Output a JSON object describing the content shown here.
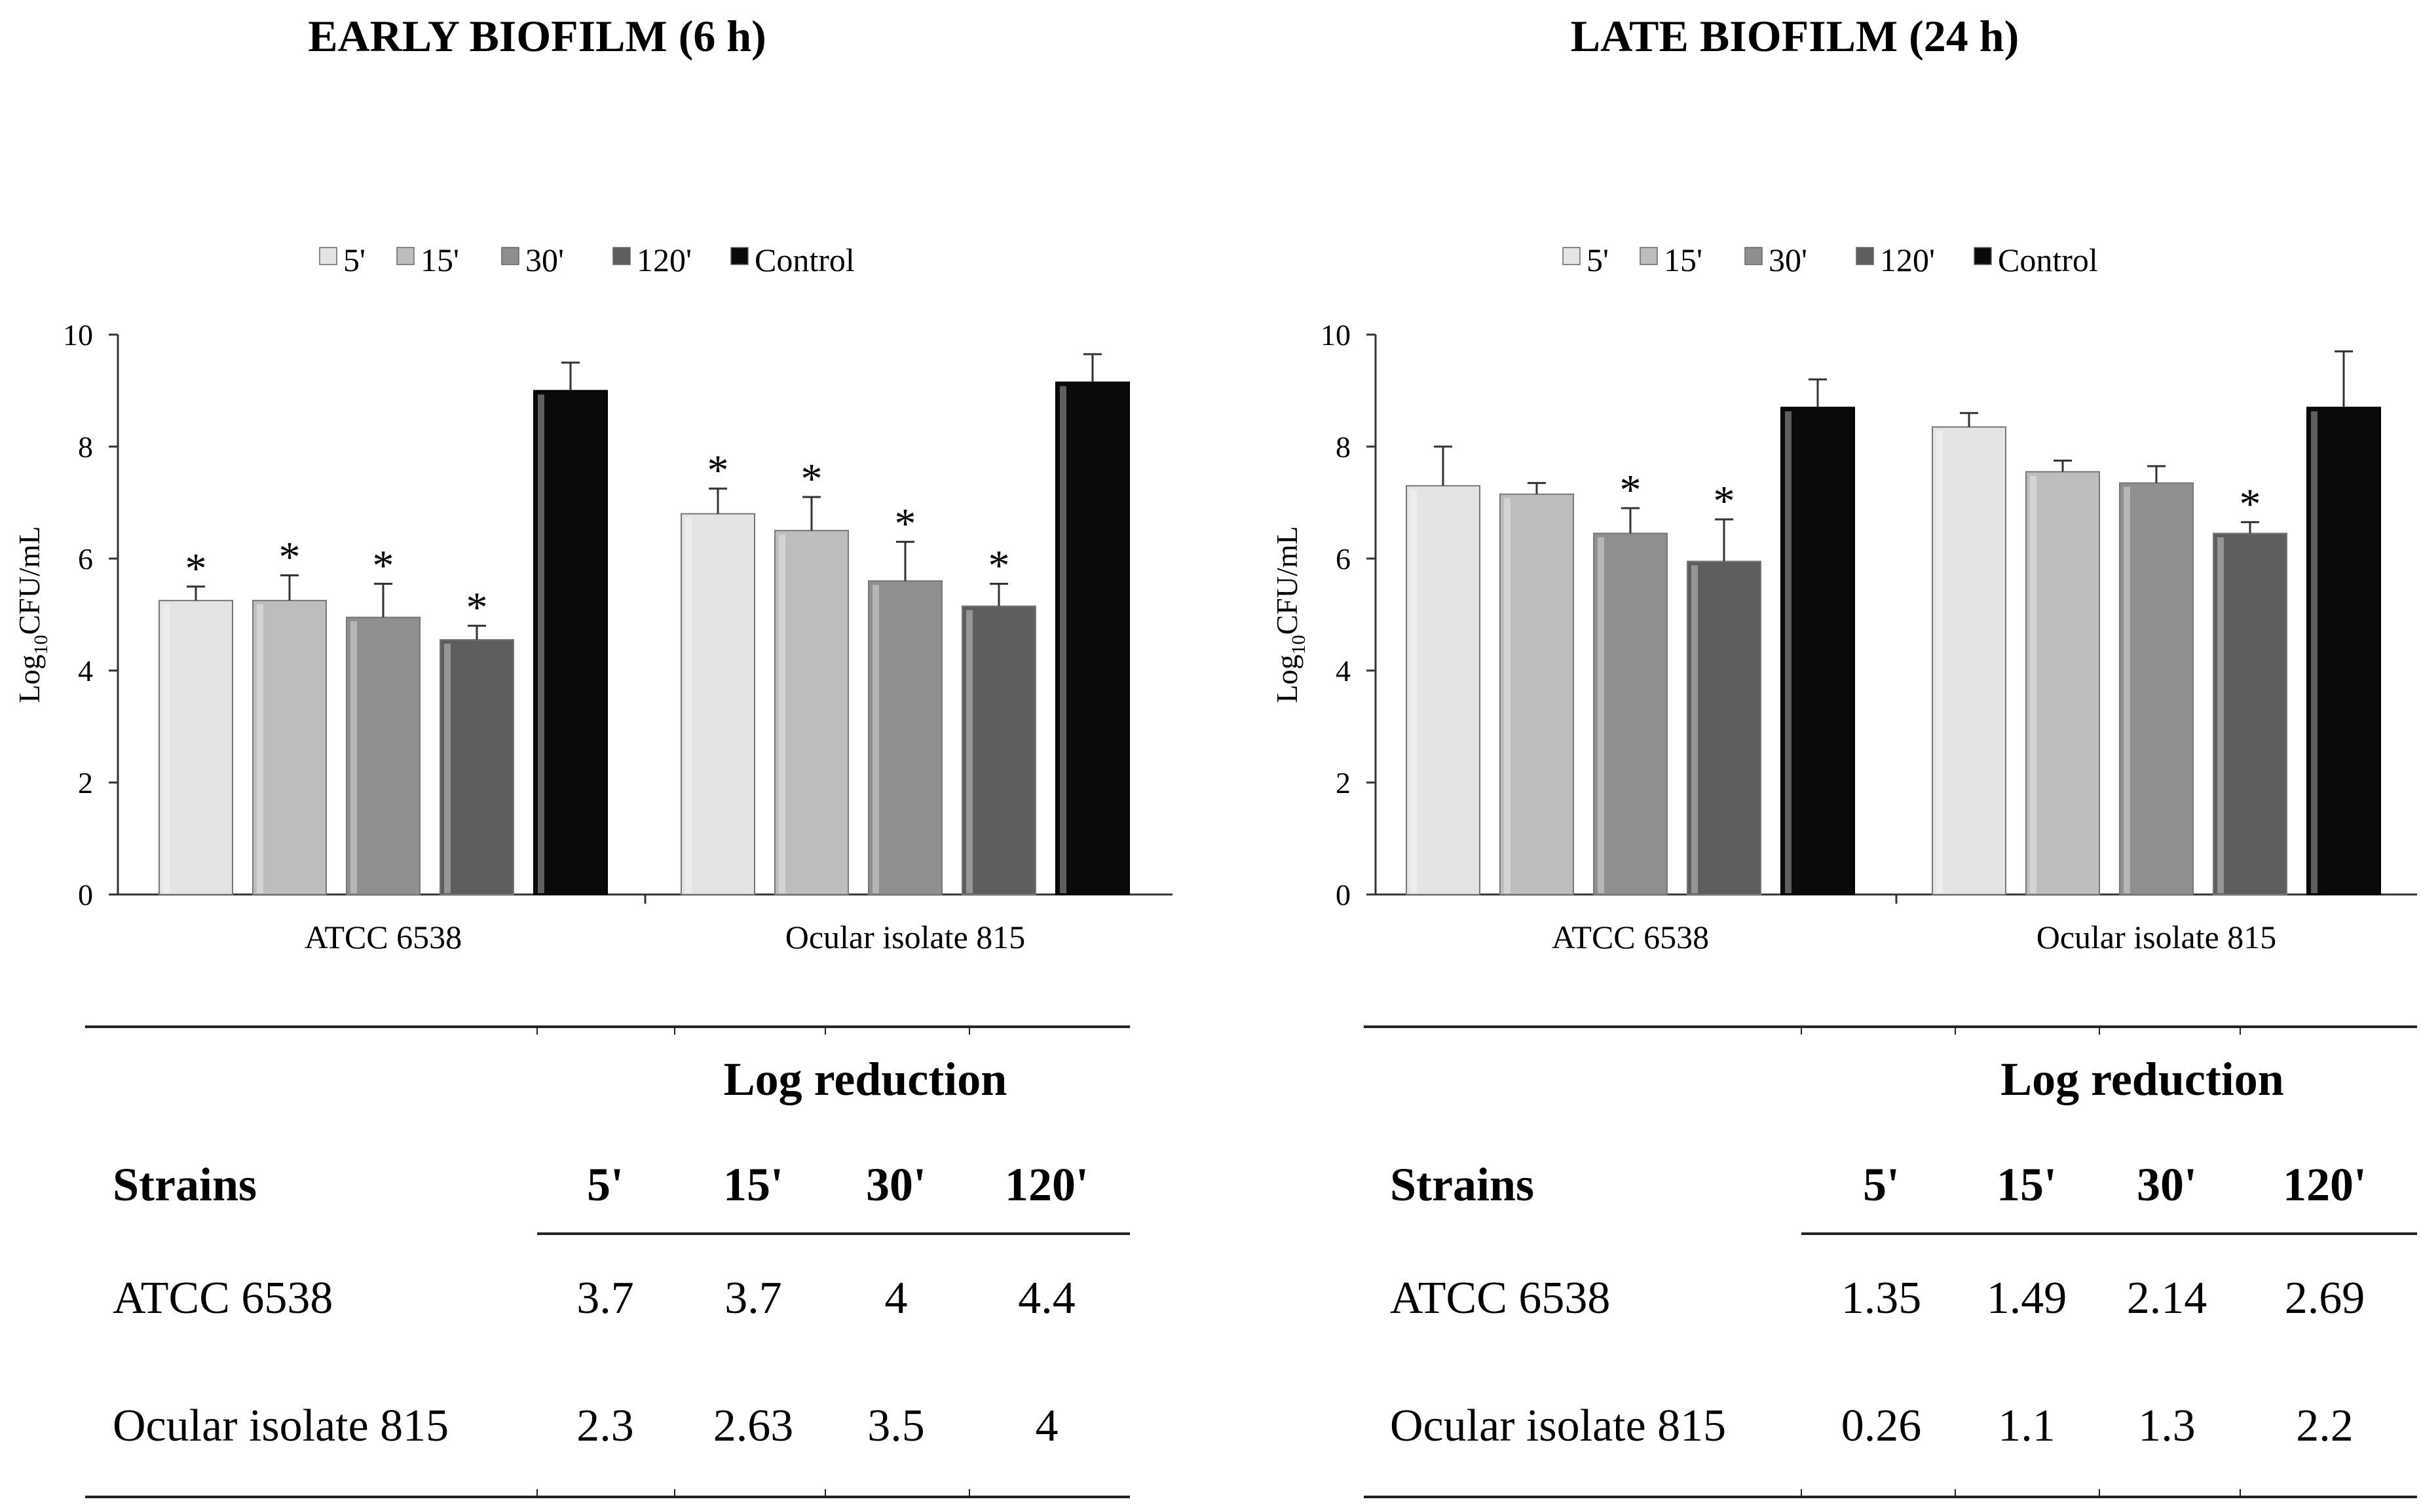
{
  "chart_data": [
    {
      "type": "bar",
      "title": "EARLY BIOFILM (6 h)",
      "ylabel": "Log10CFU/mL",
      "ylim": [
        0,
        10
      ],
      "yticks": [
        0,
        2,
        4,
        6,
        8,
        10
      ],
      "categories": [
        "ATCC 6538",
        "Ocular isolate 815"
      ],
      "legend_position": "top",
      "series": [
        {
          "name": "5'",
          "color": "#e4e4e4",
          "values": [
            5.25,
            6.8
          ],
          "errors": [
            0.25,
            0.45
          ],
          "significant": [
            true,
            true
          ]
        },
        {
          "name": "15'",
          "color": "#bdbdbd",
          "values": [
            5.25,
            6.5
          ],
          "errors": [
            0.45,
            0.6
          ],
          "significant": [
            true,
            true
          ]
        },
        {
          "name": "30'",
          "color": "#8f8f8f",
          "values": [
            4.95,
            5.6
          ],
          "errors": [
            0.6,
            0.7
          ],
          "significant": [
            true,
            true
          ]
        },
        {
          "name": "120'",
          "color": "#5e5e5e",
          "values": [
            4.55,
            5.15
          ],
          "errors": [
            0.25,
            0.4
          ],
          "significant": [
            true,
            true
          ]
        },
        {
          "name": "Control",
          "color": "#0a0a0a",
          "values": [
            9.0,
            9.15
          ],
          "errors": [
            0.5,
            0.5
          ],
          "significant": [
            false,
            false
          ]
        }
      ],
      "table": {
        "header": "Log reduction",
        "columns": [
          "Strains",
          "5'",
          "15'",
          "30'",
          "120'"
        ],
        "rows": [
          [
            "ATCC 6538",
            "3.7",
            "3.7",
            "4",
            "4.4"
          ],
          [
            "Ocular isolate 815",
            "2.3",
            "2.63",
            "3.5",
            "4"
          ]
        ]
      }
    },
    {
      "type": "bar",
      "title": "LATE BIOFILM (24 h)",
      "ylabel": "Log10CFU/mL",
      "ylim": [
        0,
        10
      ],
      "yticks": [
        0,
        2,
        4,
        6,
        8,
        10
      ],
      "categories": [
        "ATCC 6538",
        "Ocular isolate 815"
      ],
      "legend_position": "top",
      "series": [
        {
          "name": "5'",
          "color": "#e4e4e4",
          "values": [
            7.3,
            8.35
          ],
          "errors": [
            0.7,
            0.25
          ],
          "significant": [
            false,
            false
          ]
        },
        {
          "name": "15'",
          "color": "#bdbdbd",
          "values": [
            7.15,
            7.55
          ],
          "errors": [
            0.2,
            0.2
          ],
          "significant": [
            false,
            false
          ]
        },
        {
          "name": "30'",
          "color": "#8f8f8f",
          "values": [
            6.45,
            7.35
          ],
          "errors": [
            0.45,
            0.3
          ],
          "significant": [
            true,
            false
          ]
        },
        {
          "name": "120'",
          "color": "#5e5e5e",
          "values": [
            5.95,
            6.45
          ],
          "errors": [
            0.75,
            0.2
          ],
          "significant": [
            true,
            true
          ]
        },
        {
          "name": "Control",
          "color": "#0a0a0a",
          "values": [
            8.7,
            8.7
          ],
          "errors": [
            0.5,
            1.0
          ],
          "significant": [
            false,
            false
          ]
        }
      ],
      "table": {
        "header": "Log reduction",
        "columns": [
          "Strains",
          "5'",
          "15'",
          "30'",
          "120'"
        ],
        "rows": [
          [
            "ATCC 6538",
            "1.35",
            "1.49",
            "2.14",
            "2.69"
          ],
          [
            "Ocular isolate 815",
            "0.26",
            "1.1",
            "1.3",
            "2.2"
          ]
        ]
      }
    }
  ]
}
